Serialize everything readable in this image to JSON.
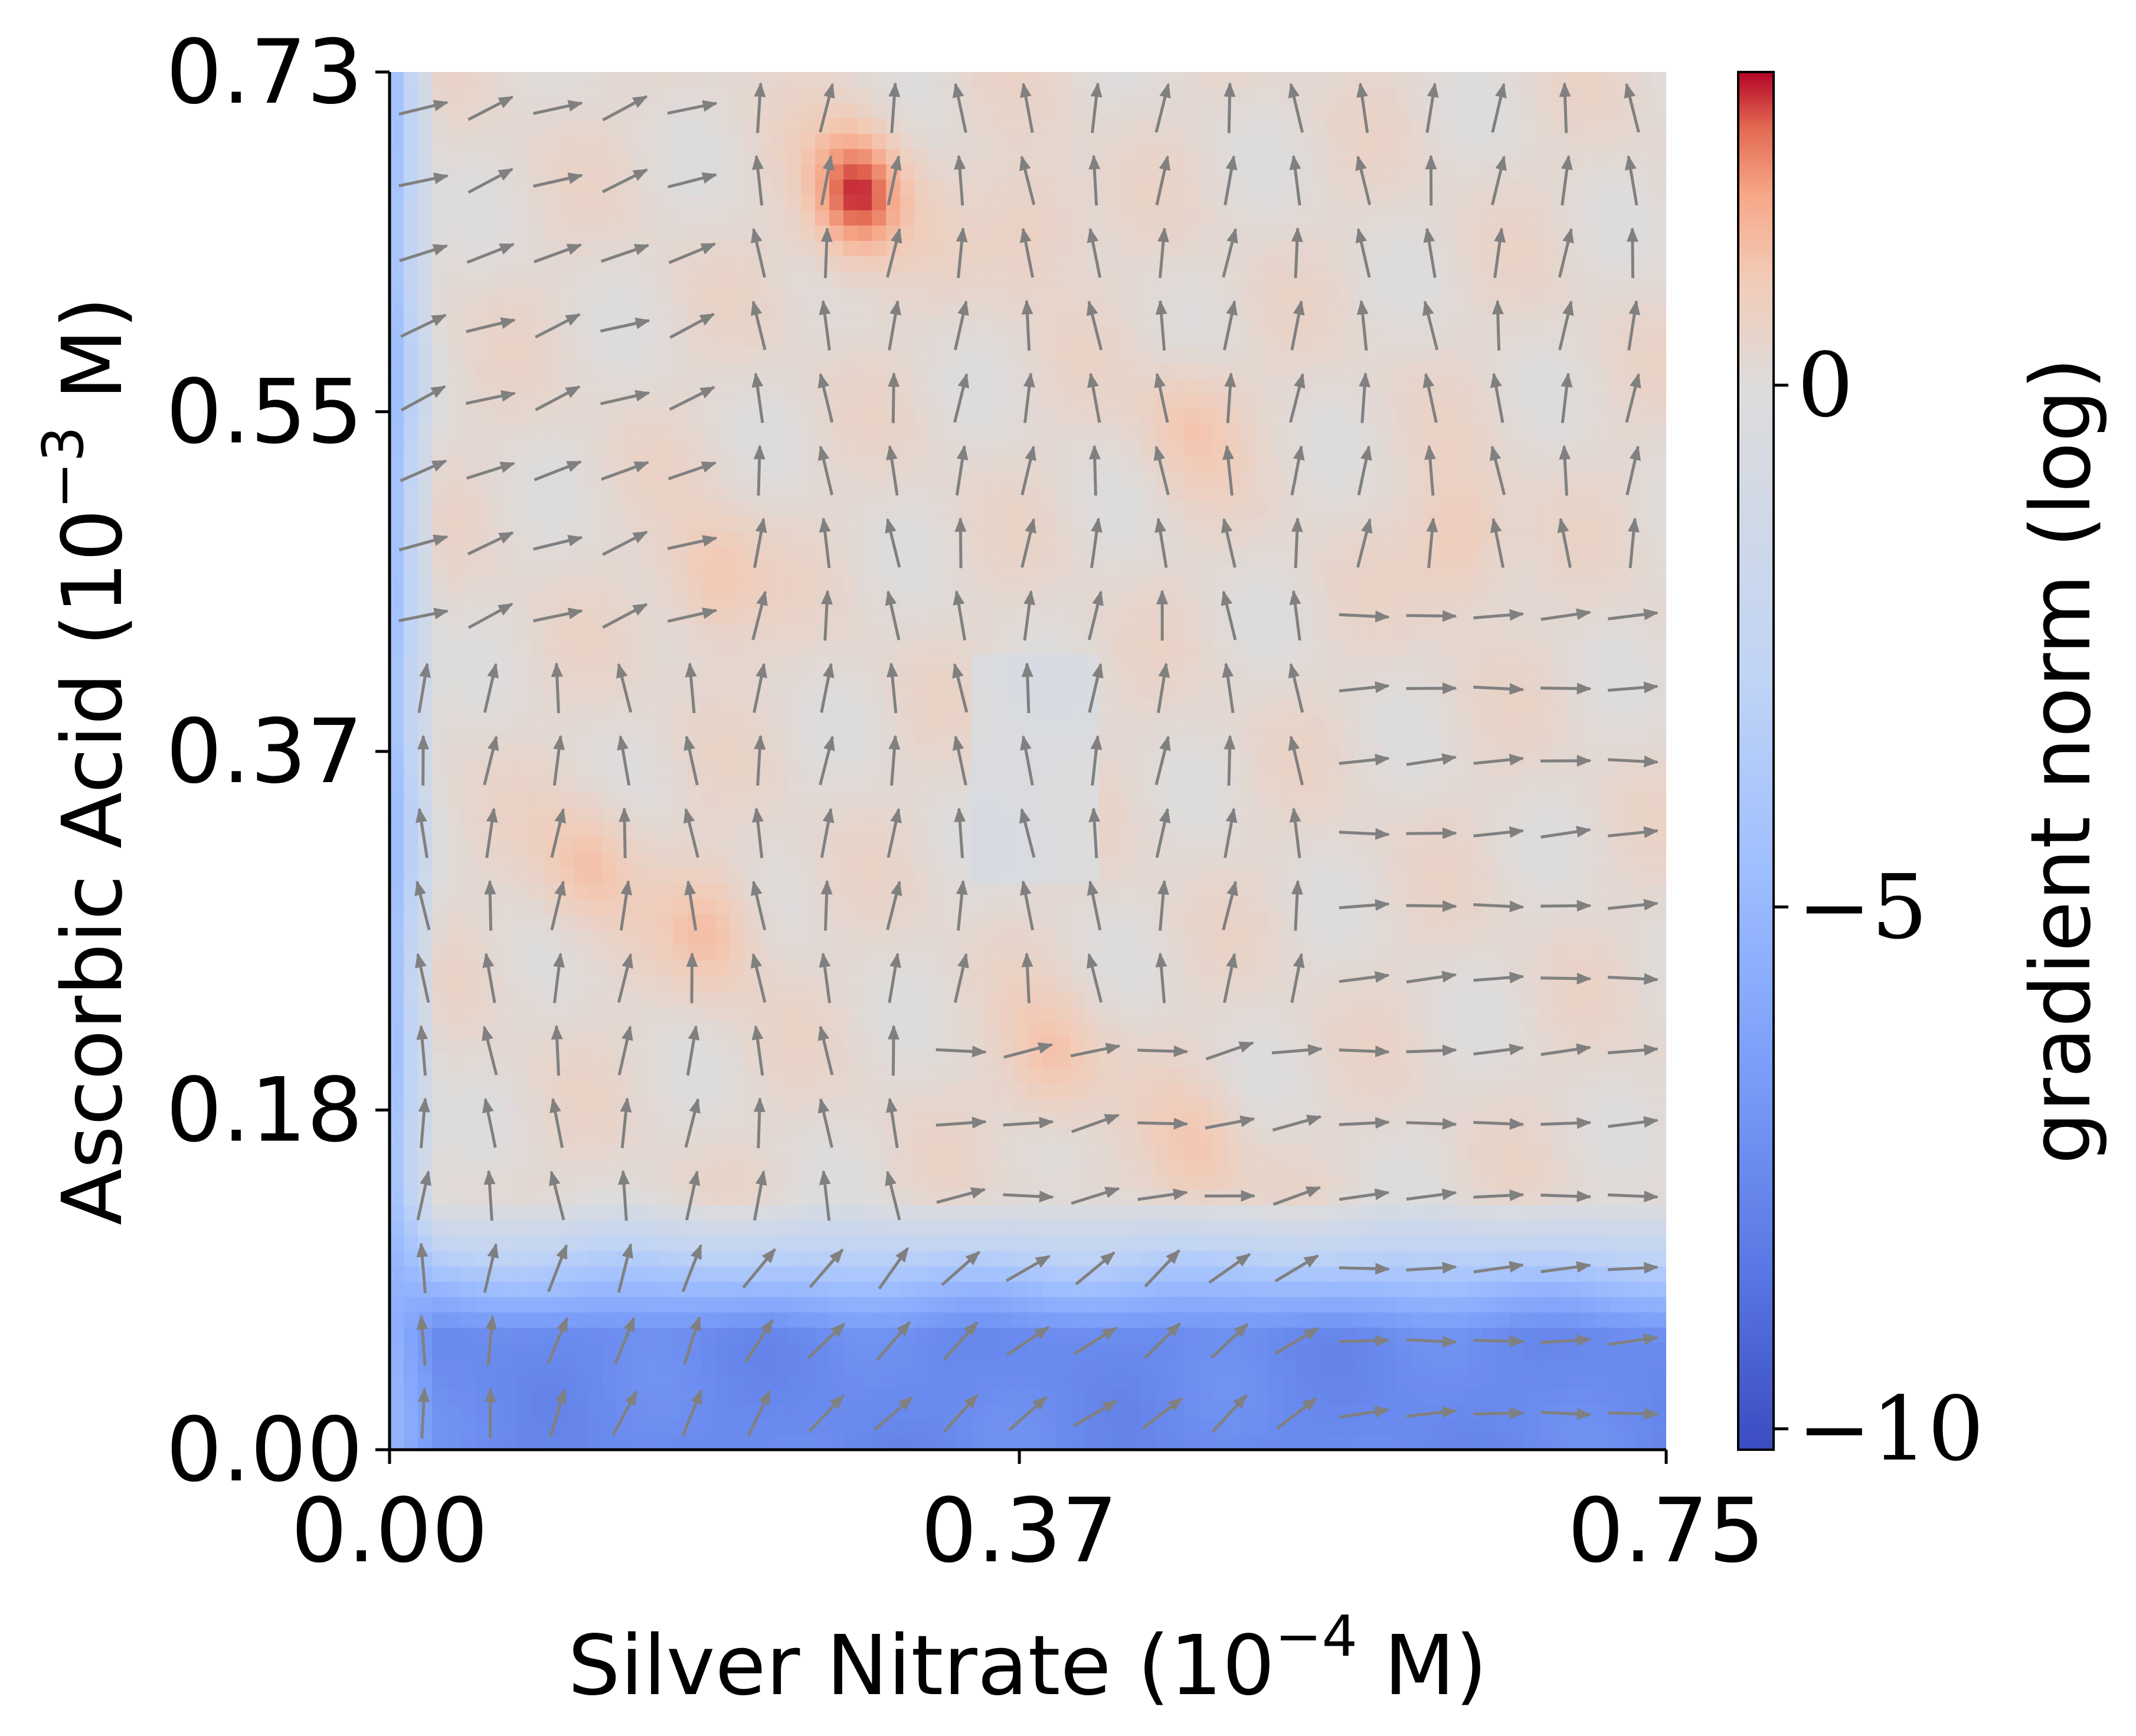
{
  "chart_data": {
    "type": "heatmap",
    "subtype": "filled contour with gradient quiver arrows",
    "colormap": "coolwarm",
    "xlabel": "Silver Nitrate (10^-4 M)",
    "xlabel_parts": {
      "main": "Silver Nitrate (10",
      "exp": "−4",
      "unit": " M)"
    },
    "ylabel": "Ascorbic Acid (10^-3 M)",
    "ylabel_parts": {
      "main": "Ascorbic Acid (10",
      "exp": "−3",
      "unit": " M)"
    },
    "xlim": [
      0.0,
      0.75
    ],
    "ylim": [
      0.0,
      0.73
    ],
    "xticks": [
      0.0,
      0.37,
      0.75
    ],
    "xtick_labels": [
      "0.00",
      "0.37",
      "0.75"
    ],
    "yticks": [
      0.0,
      0.18,
      0.37,
      0.55,
      0.73
    ],
    "ytick_labels": [
      "0.00",
      "0.18",
      "0.37",
      "0.55",
      "0.73"
    ],
    "grid": false,
    "colorbar": {
      "label": "gradient norm (log)",
      "range": [
        -10.2,
        3.0
      ],
      "ticks": [
        0,
        -5,
        -10
      ],
      "tick_labels": [
        "0",
        "−5",
        "−10"
      ],
      "colors": {
        "low": "#3b4cc0",
        "mid": "#dddcdc",
        "high": "#b40426"
      }
    },
    "arrow_color": "#808080",
    "field_description": "log gradient norm on a 20 x 20 grid: very low (blue) band for Ascorbic Acid < 0.13, low strip along Silver Nitrate = 0, mostly near-zero/positive elsewhere with peaks near (0.27, 0.67), (0.39, 0.20), (0.19, 0.28), (0.12, 0.31), (0.47, 0.54), (0.63, 0.48)",
    "hotspots": [
      {
        "x": 0.275,
        "y": 0.665,
        "value": 2.8
      },
      {
        "x": 0.39,
        "y": 0.205,
        "value": 1.2
      },
      {
        "x": 0.19,
        "y": 0.275,
        "value": 1.2
      },
      {
        "x": 0.117,
        "y": 0.31,
        "value": 1.2
      },
      {
        "x": 0.47,
        "y": 0.545,
        "value": 1.0
      },
      {
        "x": 0.63,
        "y": 0.48,
        "value": 1.1
      },
      {
        "x": 0.19,
        "y": 0.46,
        "value": 1.2
      },
      {
        "x": 0.475,
        "y": 0.155,
        "value": 1.0
      },
      {
        "x": 0.38,
        "y": 0.65,
        "value": 0.9
      }
    ]
  }
}
